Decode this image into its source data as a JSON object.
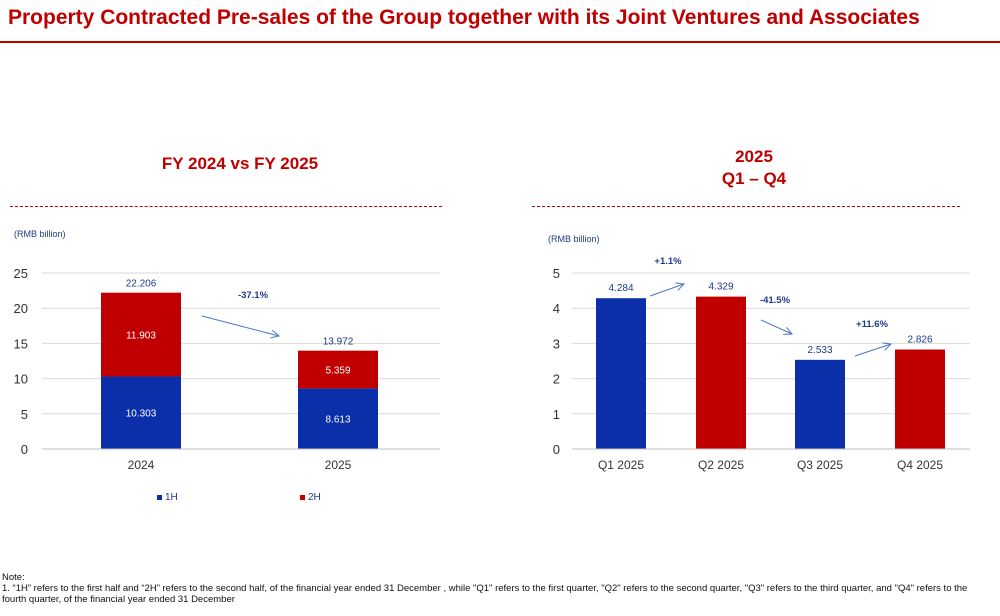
{
  "title": "Property Contracted Pre-sales of the Group together with its Joint Ventures and Associates",
  "colors": {
    "accent": "#c00000",
    "series_1h": "#0b2fa8",
    "series_2h": "#c00000",
    "q_blue": "#0b2fa8",
    "q_red": "#c00000",
    "grid": "#d9d9d9",
    "label_blue": "#1f3a8a"
  },
  "left_panel": {
    "title": "FY 2024 vs FY 2025",
    "unit": "(RMB billion)"
  },
  "right_panel": {
    "title_line1": "2025",
    "title_line2": "Q1 – Q4",
    "unit": "(RMB billion)"
  },
  "note": {
    "heading": "Note:",
    "text": "1. “1H” refers to the first half and “2H” refers to the second half, of the financial year ended 31 December , while \"Q1\" refers to the first quarter, \"Q2\" refers to the second quarter, \"Q3\" refers to the third quarter, and \"Q4\" refers to the fourth quarter, of the financial year ended 31 December"
  },
  "chart_data": [
    {
      "type": "bar",
      "stacked": true,
      "categories": [
        "2024",
        "2025"
      ],
      "series": [
        {
          "name": "1H",
          "values": [
            10.303,
            8.613
          ],
          "color": "#0b2fa8"
        },
        {
          "name": "2H",
          "values": [
            11.903,
            5.359
          ],
          "color": "#c00000"
        }
      ],
      "totals": [
        "22.206",
        "13.972"
      ],
      "value_labels": [
        [
          "10.303",
          "8.613"
        ],
        [
          "11.903",
          "5.359"
        ]
      ],
      "change_label": "-37.1%",
      "ylim": [
        0,
        25
      ],
      "yticks": [
        0,
        5,
        10,
        15,
        20,
        25
      ],
      "grid": true,
      "legend": "bottom"
    },
    {
      "type": "bar",
      "categories": [
        "Q1 2025",
        "Q2 2025",
        "Q3 2025",
        "Q4 2025"
      ],
      "values": [
        4.284,
        4.329,
        2.533,
        2.826
      ],
      "value_labels": [
        "4.284",
        "4.329",
        "2.533",
        "2.826"
      ],
      "colors": [
        "#0b2fa8",
        "#c00000",
        "#0b2fa8",
        "#c00000"
      ],
      "change_labels": [
        "+1.1%",
        "-41.5%",
        "+11.6%"
      ],
      "ylim": [
        0,
        5
      ],
      "yticks": [
        0,
        1,
        2,
        3,
        4,
        5
      ],
      "grid": true
    }
  ]
}
